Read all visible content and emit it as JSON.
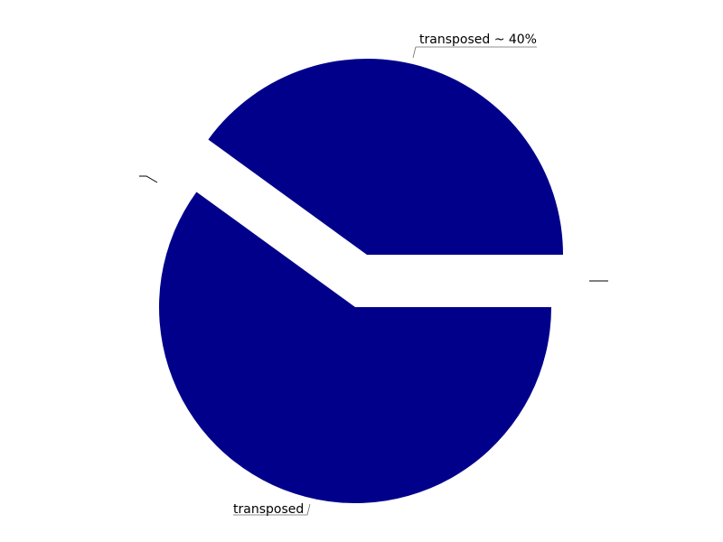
{
  "chart_data": {
    "type": "pie",
    "title": "",
    "slices": [
      {
        "label": "transposed ~ 40%",
        "value": 40,
        "exploded": true
      },
      {
        "label": "",
        "value": 0,
        "exploded": true
      },
      {
        "label": "transposed",
        "value": 60,
        "exploded": true
      },
      {
        "label": "",
        "value": 0,
        "exploded": true
      }
    ],
    "start_angle_deg": 0,
    "direction": "counterclockwise",
    "colors": {
      "slice_fill": "#00008b",
      "background": "#ffffff",
      "label_text": "#000000",
      "leader_line": "#6b6b6b"
    },
    "legend": "none"
  }
}
